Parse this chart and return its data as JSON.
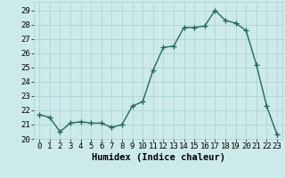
{
  "x": [
    0,
    1,
    2,
    3,
    4,
    5,
    6,
    7,
    8,
    9,
    10,
    11,
    12,
    13,
    14,
    15,
    16,
    17,
    18,
    19,
    20,
    21,
    22,
    23
  ],
  "y": [
    21.7,
    21.5,
    20.5,
    21.1,
    21.2,
    21.1,
    21.1,
    20.8,
    21.0,
    22.3,
    22.6,
    24.8,
    26.4,
    26.5,
    27.8,
    27.8,
    27.9,
    29.0,
    28.3,
    28.1,
    27.6,
    25.2,
    22.3,
    20.3
  ],
  "line_color": "#1f6b5a",
  "marker": "s",
  "markersize": 2.5,
  "linewidth": 1.0,
  "bg_color": "#cdeaea",
  "grid_color": "#aacfcf",
  "xlabel": "Humidex (Indice chaleur)",
  "ylabel": "",
  "ylim": [
    20,
    29.6
  ],
  "xlim": [
    -0.5,
    23.5
  ],
  "yticks": [
    20,
    21,
    22,
    23,
    24,
    25,
    26,
    27,
    28,
    29
  ],
  "xticks": [
    0,
    1,
    2,
    3,
    4,
    5,
    6,
    7,
    8,
    9,
    10,
    11,
    12,
    13,
    14,
    15,
    16,
    17,
    18,
    19,
    20,
    21,
    22,
    23
  ],
  "tick_fontsize": 6.5,
  "xlabel_fontsize": 7.5
}
